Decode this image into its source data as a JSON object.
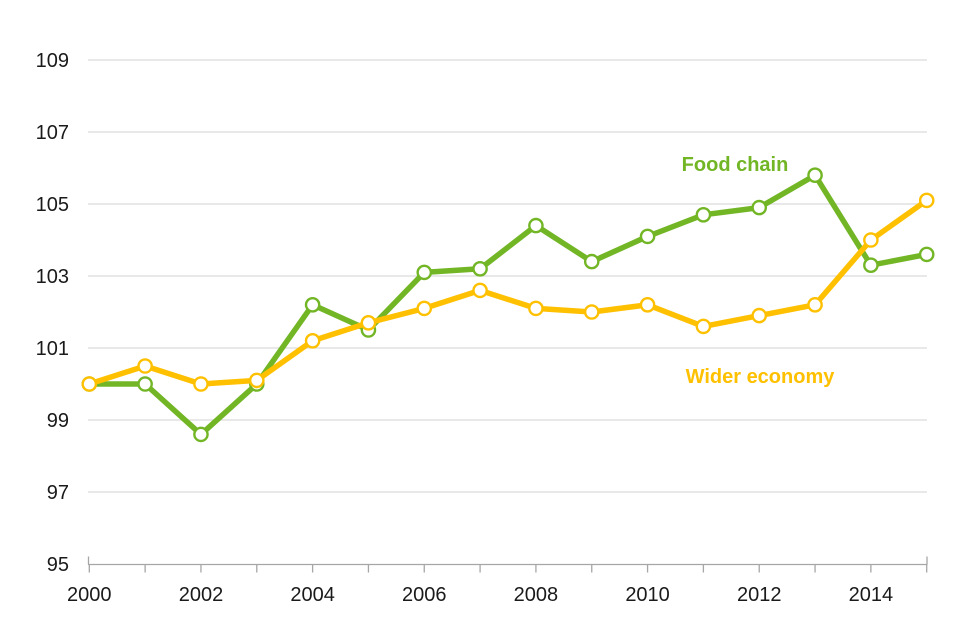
{
  "chart_data": {
    "type": "line",
    "title": "",
    "x": [
      2000,
      2001,
      2002,
      2003,
      2004,
      2005,
      2006,
      2007,
      2008,
      2009,
      2010,
      2011,
      2012,
      2013,
      2014,
      2015
    ],
    "series": [
      {
        "name": "Food chain",
        "color": "#72b626",
        "values": [
          100.0,
          100.0,
          98.6,
          100.0,
          102.2,
          101.5,
          103.1,
          103.2,
          104.4,
          103.4,
          104.1,
          104.7,
          104.9,
          105.8,
          103.3,
          103.6
        ]
      },
      {
        "name": "Wider economy",
        "color": "#ffc000",
        "values": [
          100.0,
          100.5,
          100.0,
          100.1,
          101.2,
          101.7,
          102.1,
          102.6,
          102.1,
          102.0,
          102.2,
          101.6,
          101.9,
          102.2,
          104.0,
          105.1
        ]
      }
    ],
    "ylim": [
      95,
      109
    ],
    "ytick_step": 2,
    "y_tick_labels": [
      "109",
      "107",
      "105",
      "103",
      "101",
      "99",
      "97",
      "95"
    ],
    "x_tick_labels": [
      "2000",
      "2002",
      "2004",
      "2006",
      "2008",
      "2010",
      "2012",
      "2014"
    ],
    "x_minor_ticks_every_year": true,
    "grid": "horizontal",
    "legend_position": "inline-labels",
    "marker": "circle-white-fill"
  },
  "colors": {
    "food_chain": "#72b626",
    "wider_economy": "#ffc000",
    "gridline": "#d9d9d9",
    "axis": "#a6a6a6",
    "tick_label": "#1a1a1a",
    "background": "#ffffff"
  }
}
